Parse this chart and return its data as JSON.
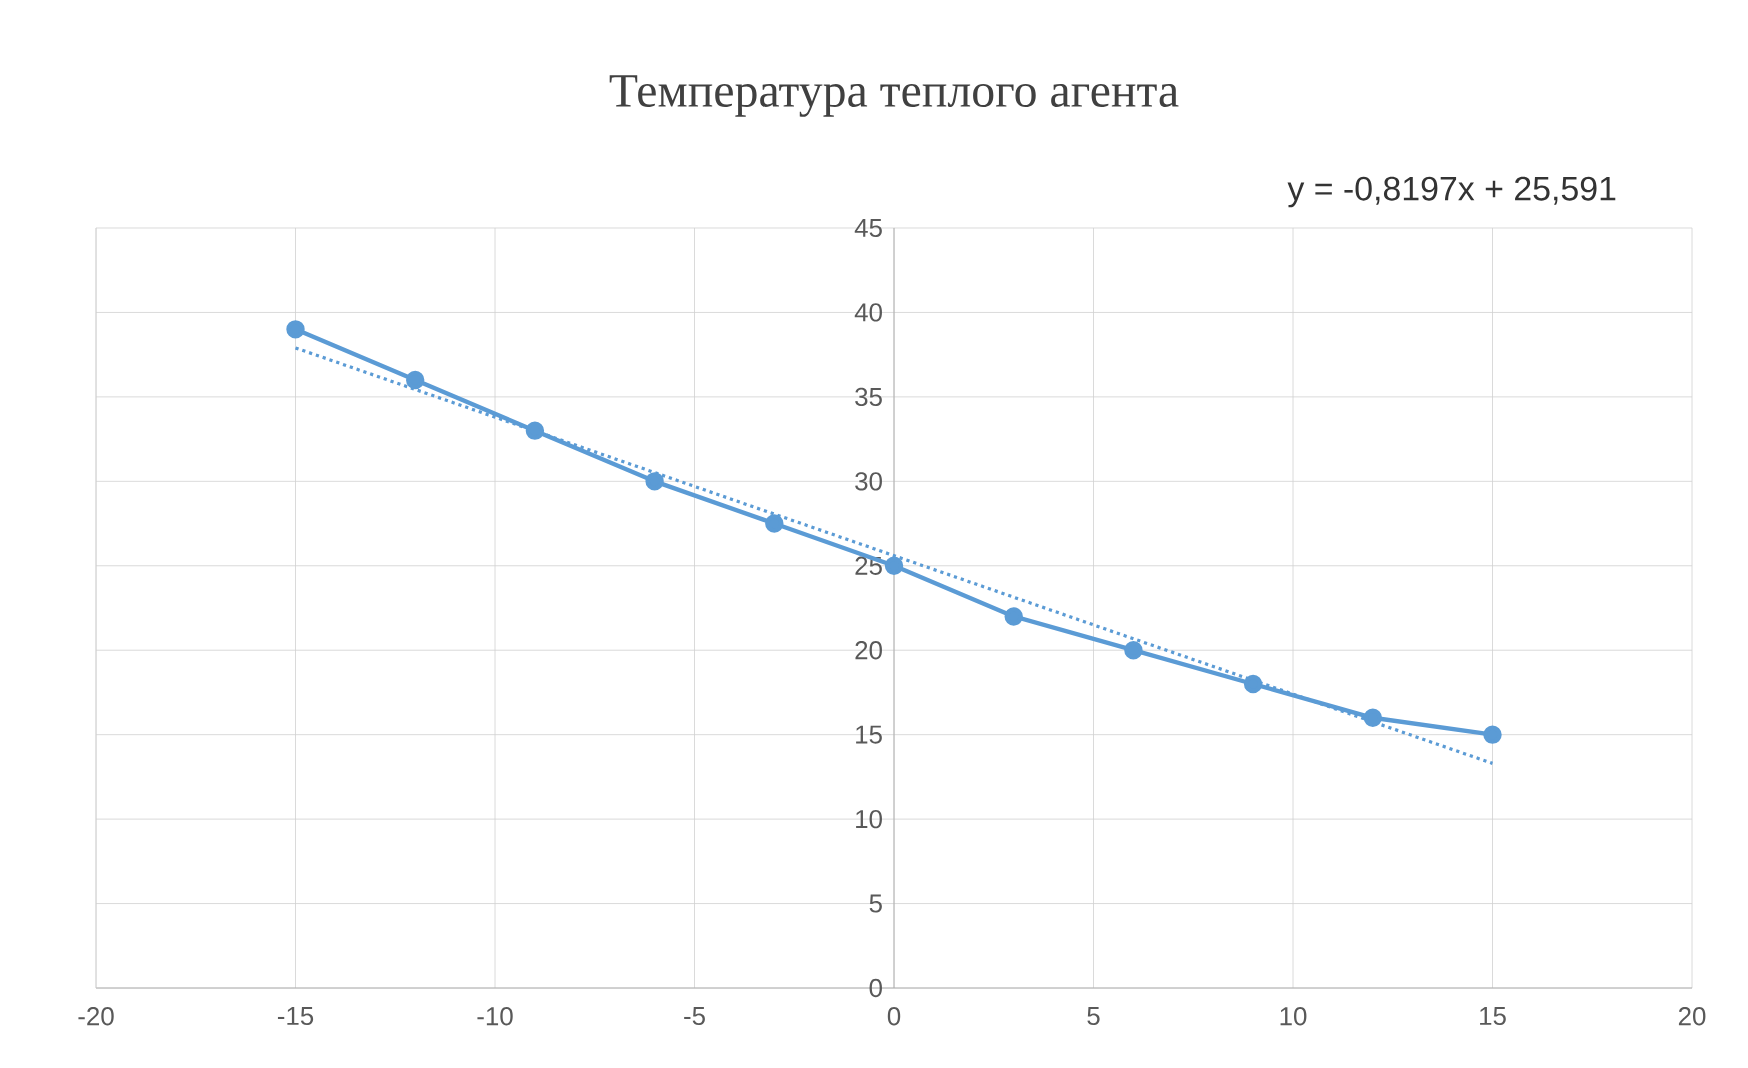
{
  "chart_data": {
    "type": "line",
    "title": "Температура теплого агента",
    "x": [
      -15,
      -12,
      -9,
      -6,
      -3,
      0,
      3,
      6,
      9,
      12,
      15
    ],
    "series": [
      {
        "color": "#5b9bd5",
        "values": [
          39,
          36,
          33,
          30,
          27.5,
          25,
          22,
          20,
          18,
          16,
          15
        ],
        "marker": "circle",
        "line_style": "solid"
      },
      {
        "color": "#5b9bd5",
        "x": [
          -15,
          15
        ],
        "values": [
          37.9,
          13.3
        ],
        "marker": "none",
        "line_style": "dotted"
      }
    ],
    "annotations": [
      "y = -0,8197x + 25,591"
    ],
    "xlim": [
      -20,
      20
    ],
    "ylim": [
      0,
      45
    ],
    "xticks": [
      -20,
      -15,
      -10,
      -5,
      0,
      5,
      10,
      15,
      20
    ],
    "yticks": [
      0,
      5,
      10,
      15,
      20,
      25,
      30,
      35,
      40,
      45
    ],
    "grid": true
  }
}
